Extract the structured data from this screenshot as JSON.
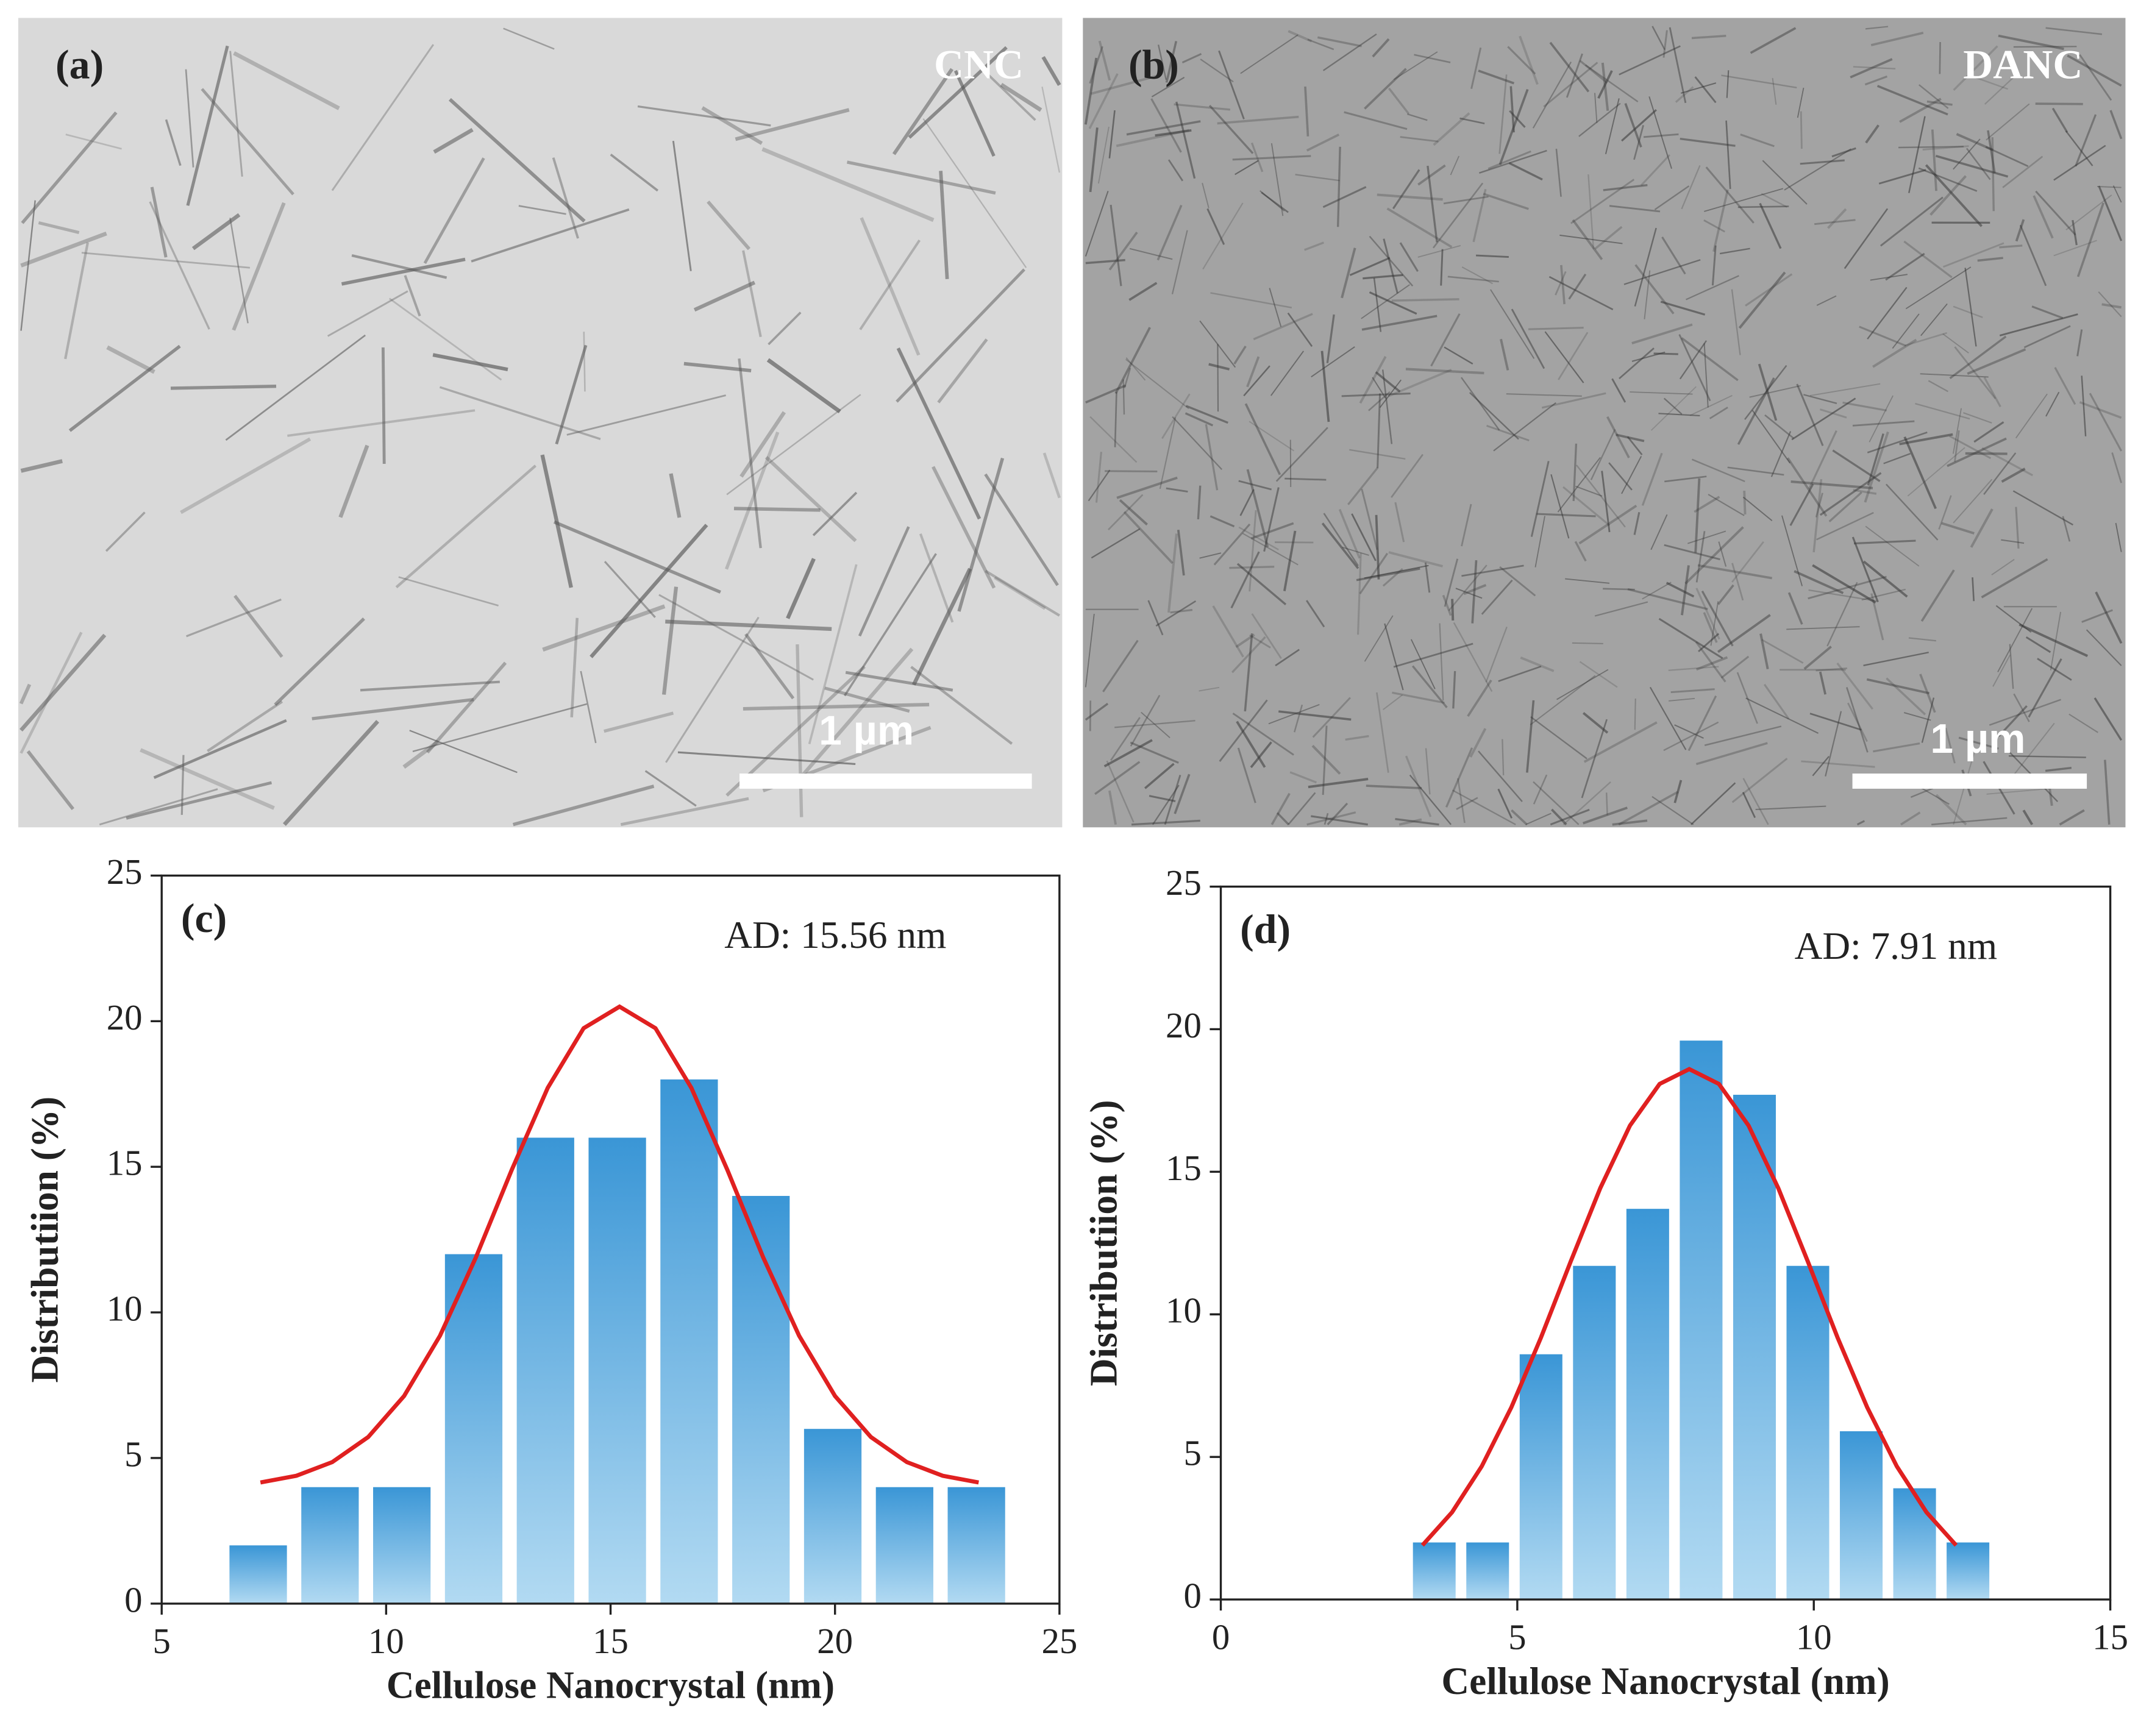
{
  "micrographs": [
    {
      "label": "(a)",
      "name": "CNC",
      "scale_bar": "1 µm"
    },
    {
      "label": "(b)",
      "name": "DANC",
      "scale_bar": "1 µm"
    }
  ],
  "chart_data": [
    {
      "type": "histogram",
      "panel": "(c)",
      "annotation": "AD: 15.56 nm",
      "x_label": "Cellulose Nanocrystal (nm)",
      "y_label": "Distributiion (%)",
      "bins": [
        6.35,
        7.95,
        9.55,
        11.15,
        12.75,
        14.35,
        15.95,
        17.55,
        19.15,
        20.75,
        22.35,
        23.95
      ],
      "values": [
        2,
        4,
        4,
        12,
        16,
        16,
        18,
        14,
        6,
        4,
        4
      ],
      "color": "#3a96d6",
      "fit_curve": {
        "color": "#e02020",
        "x": [
          7.2,
          8.0,
          8.8,
          9.6,
          10.4,
          11.2,
          12.0,
          12.8,
          13.6,
          14.4,
          15.2,
          16.0,
          16.8,
          17.6,
          18.4,
          19.2,
          20.0,
          20.8,
          21.6,
          22.4,
          23.2
        ],
        "values": [
          4.16,
          4.39,
          4.86,
          5.72,
          7.13,
          9.2,
          11.89,
          14.9,
          17.71,
          19.76,
          20.5,
          19.76,
          17.71,
          14.9,
          11.89,
          9.2,
          7.13,
          5.72,
          4.86,
          4.39,
          4.16
        ]
      },
      "xlim": [
        5,
        25
      ],
      "xticks": [
        5,
        10,
        15,
        20,
        25
      ],
      "ylim": [
        0,
        25
      ],
      "yticks": [
        0,
        5,
        10,
        15,
        20,
        25
      ]
    },
    {
      "type": "histogram",
      "panel": "(d)",
      "annotation": "AD: 7.91 nm",
      "x_label": "Cellulose Nanocrystal (nm)",
      "y_label": "Distributiion (%)",
      "bins": [
        3.15,
        4.05,
        4.95,
        5.85,
        6.75,
        7.65,
        8.55,
        9.45,
        10.35,
        11.25,
        12.15,
        13.05
      ],
      "values": [
        2,
        2,
        8.6,
        11.7,
        13.7,
        19.6,
        17.7,
        11.7,
        5.9,
        3.9,
        2
      ],
      "color": "#3a96d6",
      "fit_curve": {
        "color": "#e02020",
        "x": [
          3.4,
          3.9,
          4.4,
          4.9,
          5.4,
          5.9,
          6.4,
          6.9,
          7.4,
          7.9,
          8.4,
          8.9,
          9.4,
          9.9,
          10.4,
          10.9,
          11.4,
          11.9,
          12.4
        ],
        "values": [
          1.9,
          3.06,
          4.67,
          6.74,
          9.19,
          11.85,
          14.43,
          16.62,
          18.08,
          18.6,
          18.08,
          16.62,
          14.43,
          11.85,
          9.19,
          6.74,
          4.67,
          3.06,
          1.9
        ]
      },
      "xlim": [
        0,
        15
      ],
      "xticks": [
        0,
        5,
        10,
        15
      ],
      "ylim": [
        0,
        25
      ],
      "yticks": [
        0,
        5,
        10,
        15,
        20,
        25
      ]
    }
  ]
}
